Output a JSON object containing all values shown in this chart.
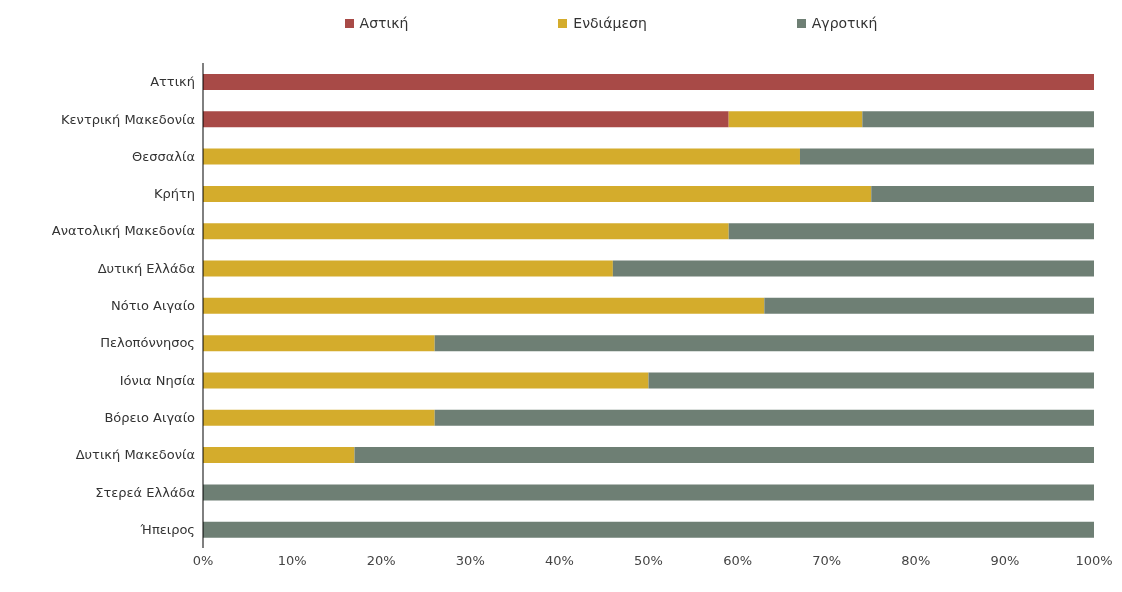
{
  "chart_data": {
    "type": "bar",
    "orientation": "horizontal",
    "stacked": true,
    "legend": "top",
    "categories": [
      "Αττική",
      "Κεντρική Μακεδονία",
      "Θεσσαλία",
      "Κρήτη",
      "Ανατολική Μακεδονία",
      "Δυτική Ελλάδα",
      "Νότιο Αιγαίο",
      "Πελοπόννησος",
      "Ιόνια Νησία",
      "Βόρειο Αιγαίο",
      "Δυτική Μακεδονία",
      "Στερεά Ελλάδα",
      "Ήπειρος"
    ],
    "series": [
      {
        "name": "Αστική",
        "color": "#a84a47",
        "values": [
          100,
          59,
          0,
          0,
          0,
          0,
          0,
          0,
          0,
          0,
          0,
          0,
          0
        ]
      },
      {
        "name": "Ενδιάμεση",
        "color": "#d4ac2c",
        "values": [
          0,
          15,
          67,
          75,
          59,
          46,
          63,
          26,
          50,
          26,
          17,
          0,
          0
        ]
      },
      {
        "name": "Αγροτική",
        "color": "#6e7f74",
        "values": [
          0,
          26,
          33,
          25,
          41,
          54,
          37,
          74,
          50,
          74,
          83,
          100,
          100
        ]
      }
    ],
    "xlim": [
      0,
      100
    ],
    "xticks": [
      {
        "value": 0,
        "label": "0%"
      },
      {
        "value": 10,
        "label": "10%"
      },
      {
        "value": 20,
        "label": "20%"
      },
      {
        "value": 30,
        "label": "30%"
      },
      {
        "value": 40,
        "label": "40%"
      },
      {
        "value": 50,
        "label": "50%"
      },
      {
        "value": 60,
        "label": "60%"
      },
      {
        "value": 70,
        "label": "70%"
      },
      {
        "value": 80,
        "label": "80%"
      },
      {
        "value": 90,
        "label": "90%"
      },
      {
        "value": 100,
        "label": "100%"
      }
    ],
    "grid": false
  }
}
